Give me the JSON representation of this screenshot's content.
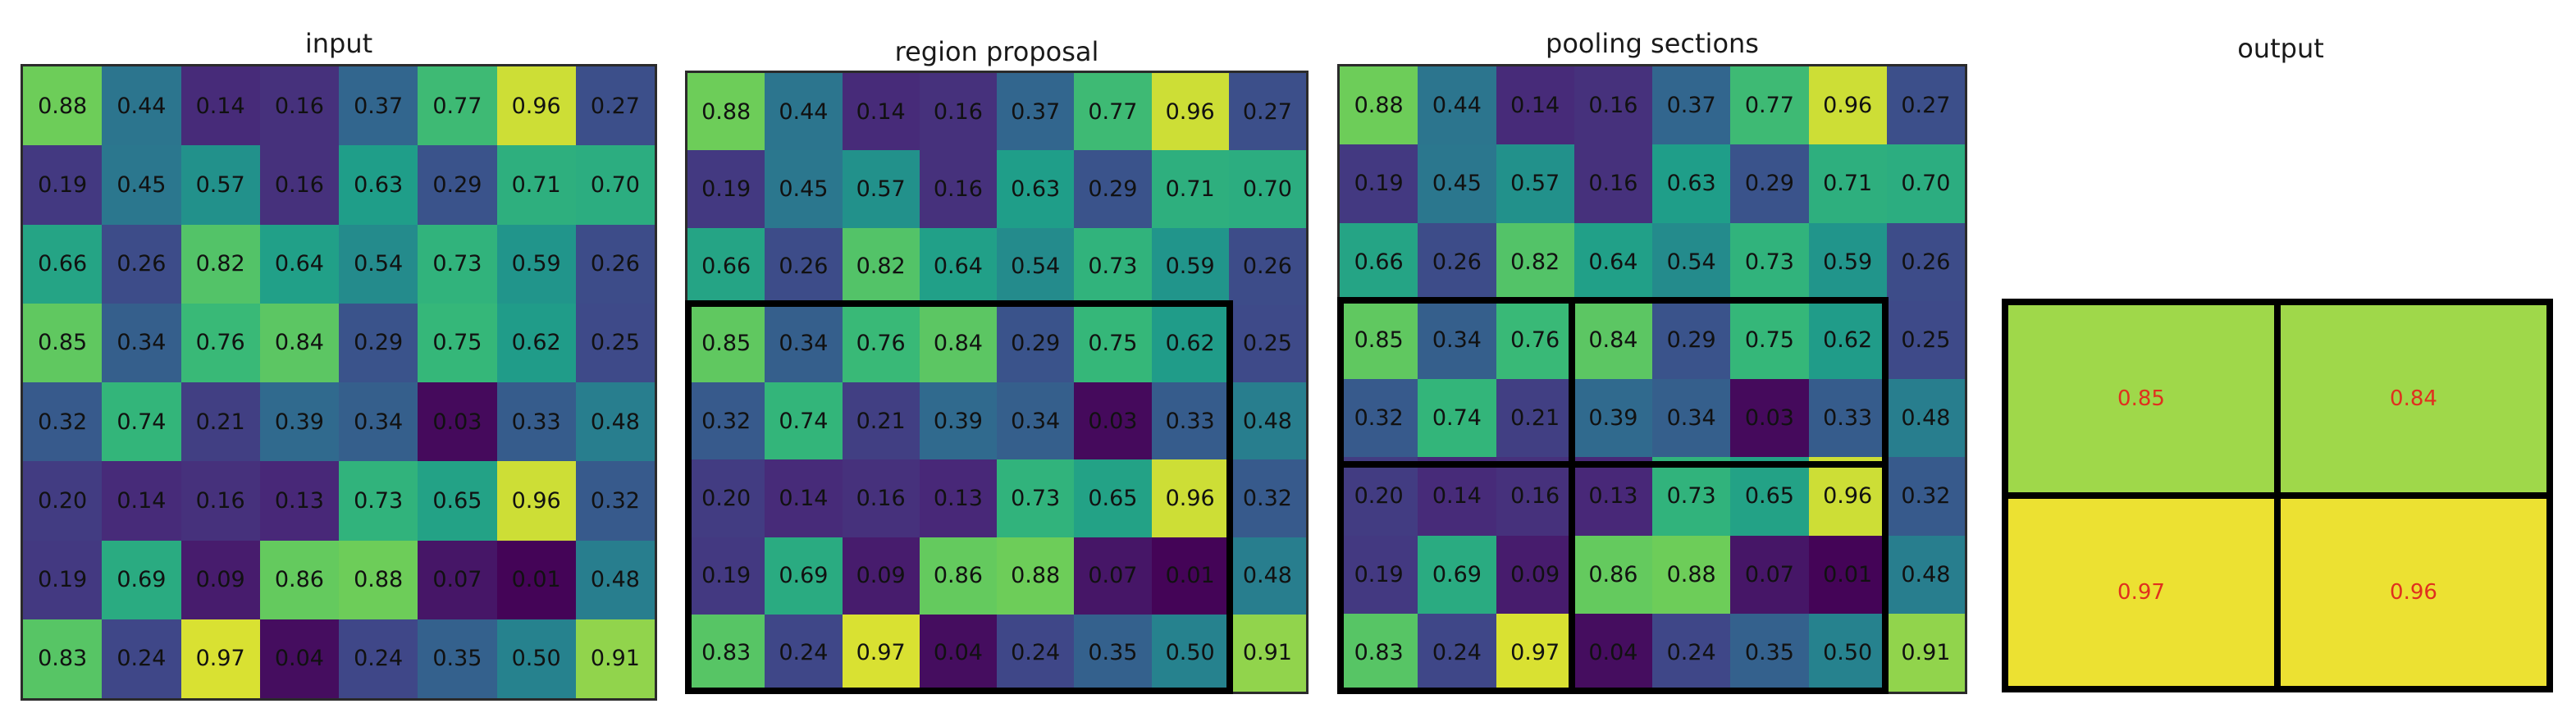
{
  "panels": {
    "input_title": "input",
    "region_title": "region proposal",
    "pooling_title": "pooling sections",
    "output_title": "output"
  },
  "matrix": [
    [
      "0.88",
      "0.44",
      "0.14",
      "0.16",
      "0.37",
      "0.77",
      "0.96",
      "0.27"
    ],
    [
      "0.19",
      "0.45",
      "0.57",
      "0.16",
      "0.63",
      "0.29",
      "0.71",
      "0.70"
    ],
    [
      "0.66",
      "0.26",
      "0.82",
      "0.64",
      "0.54",
      "0.73",
      "0.59",
      "0.26"
    ],
    [
      "0.85",
      "0.34",
      "0.76",
      "0.84",
      "0.29",
      "0.75",
      "0.62",
      "0.25"
    ],
    [
      "0.32",
      "0.74",
      "0.21",
      "0.39",
      "0.34",
      "0.03",
      "0.33",
      "0.48"
    ],
    [
      "0.20",
      "0.14",
      "0.16",
      "0.13",
      "0.73",
      "0.65",
      "0.96",
      "0.32"
    ],
    [
      "0.19",
      "0.69",
      "0.09",
      "0.86",
      "0.88",
      "0.07",
      "0.01",
      "0.48"
    ],
    [
      "0.83",
      "0.24",
      "0.97",
      "0.04",
      "0.24",
      "0.35",
      "0.50",
      "0.91"
    ]
  ],
  "output": [
    [
      "0.85",
      "0.84"
    ],
    [
      "0.97",
      "0.96"
    ]
  ],
  "colors": {
    "output_high": "#ece132",
    "output_mid": "#9fd84a",
    "output_text": "#e0301e",
    "border": "#000000"
  }
}
